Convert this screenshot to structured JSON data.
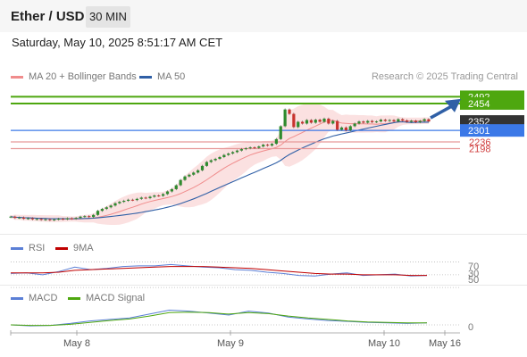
{
  "header": {
    "pair": "Ether / USD",
    "interval": "30 MIN"
  },
  "datetime": "Saturday, May 10, 2025 8:51:17 AM CET",
  "credit": "Research © 2025 Trading Central",
  "colors": {
    "up": "#2e8b2e",
    "down": "#c8322e",
    "ma20": "#f08c8c",
    "band": "#fad7d7",
    "ma50": "#2f5fa6",
    "resistance": "#4ea70f",
    "support": "#e79999",
    "pivot": "#3b78e7",
    "last": "#333333",
    "rsi": "#5b7fd6",
    "rsi_ma": "#c00000",
    "macd": "#5b7fd6",
    "macd_signal": "#4ea70f",
    "arrow": "#2f5fa6"
  },
  "chart_data": [
    {
      "type": "candlestick",
      "legend": [
        "MA 20 + Bollinger Bands",
        "MA 50"
      ],
      "x_ticks": [
        "May 8",
        "May 9",
        "May 10",
        "May 16"
      ],
      "y_range": [
        1750,
        2560
      ],
      "levels": [
        {
          "label": "2492",
          "value": 2492,
          "kind": "resistance"
        },
        {
          "label": "2454",
          "value": 2454,
          "kind": "resistance"
        },
        {
          "label": "2352",
          "value": 2352,
          "kind": "last"
        },
        {
          "label": "2301",
          "value": 2301,
          "kind": "pivot"
        },
        {
          "label": "2236",
          "value": 2236,
          "kind": "support"
        },
        {
          "label": "2198",
          "value": 2198,
          "kind": "support"
        }
      ],
      "candles": [
        [
          1810,
          1812
        ],
        [
          1812,
          1805
        ],
        [
          1805,
          1807
        ],
        [
          1807,
          1800
        ],
        [
          1800,
          1803
        ],
        [
          1803,
          1797
        ],
        [
          1797,
          1799
        ],
        [
          1799,
          1794
        ],
        [
          1794,
          1797
        ],
        [
          1797,
          1792
        ],
        [
          1792,
          1796
        ],
        [
          1796,
          1800
        ],
        [
          1800,
          1797
        ],
        [
          1797,
          1803
        ],
        [
          1803,
          1800
        ],
        [
          1800,
          1805
        ],
        [
          1805,
          1812
        ],
        [
          1812,
          1815
        ],
        [
          1815,
          1810
        ],
        [
          1810,
          1822
        ],
        [
          1822,
          1845
        ],
        [
          1845,
          1856
        ],
        [
          1856,
          1865
        ],
        [
          1865,
          1875
        ],
        [
          1875,
          1888
        ],
        [
          1888,
          1896
        ],
        [
          1896,
          1902
        ],
        [
          1902,
          1908
        ],
        [
          1908,
          1906
        ],
        [
          1906,
          1913
        ],
        [
          1913,
          1920
        ],
        [
          1920,
          1917
        ],
        [
          1917,
          1925
        ],
        [
          1925,
          1932
        ],
        [
          1932,
          1930
        ],
        [
          1930,
          1940
        ],
        [
          1940,
          1955
        ],
        [
          1955,
          1968
        ],
        [
          1968,
          1990
        ],
        [
          1990,
          2020
        ],
        [
          2020,
          2040
        ],
        [
          2040,
          2050
        ],
        [
          2050,
          2062
        ],
        [
          2062,
          2075
        ],
        [
          2075,
          2100
        ],
        [
          2100,
          2122
        ],
        [
          2122,
          2132
        ],
        [
          2132,
          2140
        ],
        [
          2140,
          2150
        ],
        [
          2150,
          2162
        ],
        [
          2162,
          2170
        ],
        [
          2170,
          2178
        ],
        [
          2178,
          2187
        ],
        [
          2187,
          2195
        ],
        [
          2195,
          2200
        ],
        [
          2200,
          2205
        ],
        [
          2205,
          2202
        ],
        [
          2202,
          2210
        ],
        [
          2210,
          2220
        ],
        [
          2220,
          2215
        ],
        [
          2215,
          2225
        ],
        [
          2225,
          2252
        ],
        [
          2252,
          2325
        ],
        [
          2325,
          2420
        ],
        [
          2420,
          2395
        ],
        [
          2395,
          2320
        ],
        [
          2320,
          2350
        ],
        [
          2350,
          2340
        ],
        [
          2340,
          2360
        ],
        [
          2360,
          2345
        ],
        [
          2345,
          2362
        ],
        [
          2362,
          2350
        ],
        [
          2350,
          2368
        ],
        [
          2368,
          2340
        ],
        [
          2340,
          2355
        ],
        [
          2355,
          2305
        ],
        [
          2305,
          2318
        ],
        [
          2318,
          2302
        ],
        [
          2302,
          2325
        ],
        [
          2325,
          2340
        ],
        [
          2340,
          2352
        ],
        [
          2352,
          2345
        ],
        [
          2345,
          2355
        ],
        [
          2355,
          2348
        ],
        [
          2348,
          2352
        ],
        [
          2352,
          2362
        ],
        [
          2362,
          2355
        ],
        [
          2355,
          2360
        ],
        [
          2360,
          2352
        ],
        [
          2352,
          2365
        ],
        [
          2365,
          2358
        ],
        [
          2358,
          2350
        ],
        [
          2350,
          2356
        ],
        [
          2356,
          2348
        ],
        [
          2348,
          2355
        ],
        [
          2355,
          2365
        ],
        [
          2365,
          2352
        ]
      ]
    },
    {
      "type": "line",
      "series": [
        {
          "name": "RSI",
          "values": [
            52,
            53,
            50,
            55,
            62,
            58,
            60,
            63,
            64,
            64,
            66,
            64,
            62,
            61,
            58,
            57,
            54,
            52,
            49,
            48,
            51,
            53,
            49,
            50,
            51,
            48,
            49
          ]
        },
        {
          "name": "9MA",
          "values": [
            53,
            53,
            53,
            54,
            57,
            58,
            59,
            60,
            61,
            62,
            63,
            63,
            63,
            62,
            61,
            60,
            58,
            56,
            54,
            52,
            51,
            51,
            50,
            50,
            50,
            49,
            49
          ]
        }
      ],
      "y_ticks": [
        "70",
        "30",
        "50"
      ]
    },
    {
      "type": "line",
      "series": [
        {
          "name": "MACD",
          "values": [
            0,
            -2,
            -1,
            3,
            8,
            11,
            14,
            22,
            30,
            28,
            24,
            20,
            28,
            24,
            16,
            12,
            9,
            7,
            5,
            4,
            3,
            4
          ]
        },
        {
          "name": "MACD Signal",
          "values": [
            0,
            -1,
            -1,
            1,
            5,
            9,
            12,
            18,
            25,
            26,
            25,
            22,
            25,
            23,
            18,
            14,
            11,
            8,
            6,
            5,
            4,
            4
          ]
        }
      ],
      "y_ticks": [
        "0"
      ]
    }
  ]
}
